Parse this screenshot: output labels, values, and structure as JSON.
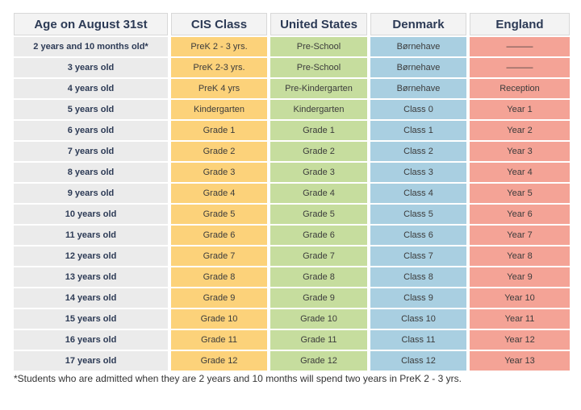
{
  "table": {
    "headers": [
      "Age on August 31st",
      "CIS Class",
      "United States",
      "Denmark",
      "England"
    ],
    "rows": [
      [
        "2 years and 10 months old*",
        "PreK 2 - 3 yrs.",
        "Pre-School",
        "Børnehave",
        "———"
      ],
      [
        "3 years old",
        "PreK 2-3 yrs.",
        "Pre-School",
        "Børnehave",
        "———"
      ],
      [
        "4 years old",
        "PreK 4 yrs",
        "Pre-Kindergarten",
        "Børnehave",
        "Reception"
      ],
      [
        "5 years old",
        "Kindergarten",
        "Kindergarten",
        "Class 0",
        "Year 1"
      ],
      [
        "6 years old",
        "Grade 1",
        "Grade 1",
        "Class 1",
        "Year 2"
      ],
      [
        "7 years old",
        "Grade 2",
        "Grade 2",
        "Class 2",
        "Year 3"
      ],
      [
        "8 years old",
        "Grade 3",
        "Grade 3",
        "Class 3",
        "Year 4"
      ],
      [
        "9 years old",
        "Grade 4",
        "Grade 4",
        "Class 4",
        "Year 5"
      ],
      [
        "10 years old",
        "Grade 5",
        "Grade 5",
        "Class 5",
        "Year 6"
      ],
      [
        "11 years old",
        "Grade 6",
        "Grade 6",
        "Class 6",
        "Year 7"
      ],
      [
        "12 years old",
        "Grade 7",
        "Grade 7",
        "Class 7",
        "Year 8"
      ],
      [
        "13 years old",
        "Grade 8",
        "Grade 8",
        "Class 8",
        "Year 9"
      ],
      [
        "14 years old",
        "Grade 9",
        "Grade 9",
        "Class 9",
        "Year 10"
      ],
      [
        "15 years old",
        "Grade 10",
        "Grade 10",
        "Class 10",
        "Year 11"
      ],
      [
        "16 years old",
        "Grade 11",
        "Grade 11",
        "Class 11",
        "Year 12"
      ],
      [
        "17 years old",
        "Grade 12",
        "Grade 12",
        "Class 12",
        "Year 13"
      ]
    ]
  },
  "footnote": "*Students who are admitted when they are 2 years and 10 months will spend two years in PreK 2 - 3 yrs."
}
